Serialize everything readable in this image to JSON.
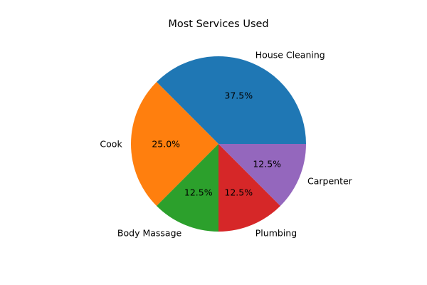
{
  "chart_data": {
    "type": "pie",
    "title": "Most Services Used",
    "labels": [
      "House Cleaning",
      "Cook",
      "Body Massage",
      "Plumbing",
      "Carpenter"
    ],
    "values": [
      37.5,
      25.0,
      12.5,
      12.5,
      12.5
    ],
    "percent_labels": [
      "37.5%",
      "25.0%",
      "12.5%",
      "12.5%",
      "12.5%"
    ],
    "colors": [
      "#1f77b4",
      "#ff7f0e",
      "#2ca02c",
      "#d62728",
      "#9467bd"
    ],
    "start_angle_deg": 0,
    "direction": "counterclockwise"
  }
}
